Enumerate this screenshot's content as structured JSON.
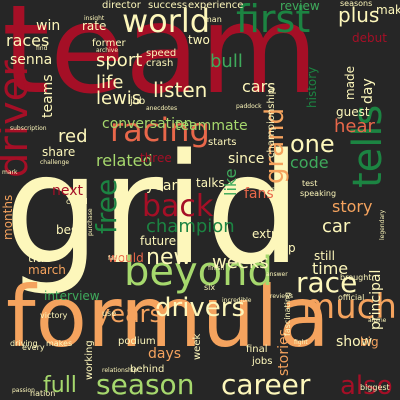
{
  "background": "#262626",
  "palette": {
    "red": "#a50f26",
    "coral": "#e8674a",
    "orange": "#f5a35e",
    "cream": "#fdf7bb",
    "lightgreen": "#a6d86d",
    "green": "#3faa5c",
    "darkgreen": "#1c8442"
  },
  "words": [
    {
      "text": "team",
      "color": "red"
    },
    {
      "text": "grid",
      "color": "cream"
    },
    {
      "text": "formula",
      "color": "orange"
    },
    {
      "text": "world",
      "color": "cream"
    },
    {
      "text": "first",
      "color": "darkgreen"
    },
    {
      "text": "racing",
      "color": "coral"
    },
    {
      "text": "driver",
      "color": "red"
    },
    {
      "text": "beyond",
      "color": "lightgreen"
    },
    {
      "text": "grand",
      "color": "orange"
    },
    {
      "text": "tells",
      "color": "darkgreen"
    },
    {
      "text": "much",
      "color": "orange"
    },
    {
      "text": "season",
      "color": "lightgreen"
    },
    {
      "text": "career",
      "color": "cream"
    },
    {
      "text": "drivers",
      "color": "cream"
    },
    {
      "text": "race",
      "color": "cream"
    },
    {
      "text": "back",
      "color": "red"
    },
    {
      "text": "new",
      "color": "cream"
    },
    {
      "text": "also",
      "color": "red"
    },
    {
      "text": "one",
      "color": "cream"
    },
    {
      "text": "free",
      "color": "darkgreen"
    },
    {
      "text": "years",
      "color": "orange"
    },
    {
      "text": "listen",
      "color": "cream"
    },
    {
      "text": "life",
      "color": "cream"
    },
    {
      "text": "lewis",
      "color": "cream"
    },
    {
      "text": "sport",
      "color": "cream"
    },
    {
      "text": "champion",
      "color": "darkgreen"
    },
    {
      "text": "weeks",
      "color": "cream"
    },
    {
      "text": "full",
      "color": "lightgreen"
    },
    {
      "text": "teams",
      "color": "cream"
    },
    {
      "text": "races",
      "color": "cream"
    },
    {
      "text": "win",
      "color": "cream"
    },
    {
      "text": "senna",
      "color": "cream"
    },
    {
      "text": "red",
      "color": "cream"
    },
    {
      "text": "related",
      "color": "lightgreen"
    },
    {
      "text": "conversation",
      "color": "lightgreen"
    },
    {
      "text": "teammate",
      "color": "lightgreen"
    },
    {
      "text": "code",
      "color": "green"
    },
    {
      "text": "hear",
      "color": "coral"
    },
    {
      "text": "plus",
      "color": "cream"
    },
    {
      "text": "cars",
      "color": "cream"
    },
    {
      "text": "bull",
      "color": "green"
    },
    {
      "text": "guest",
      "color": "cream"
    },
    {
      "text": "time",
      "color": "cream"
    },
    {
      "text": "story",
      "color": "orange"
    },
    {
      "text": "car",
      "color": "cream"
    },
    {
      "text": "since",
      "color": "cream"
    },
    {
      "text": "still",
      "color": "cream"
    },
    {
      "text": "interview",
      "color": "green"
    },
    {
      "text": "future",
      "color": "cream"
    },
    {
      "text": "year",
      "color": "cream"
    },
    {
      "text": "talks",
      "color": "cream"
    },
    {
      "text": "fans",
      "color": "coral"
    },
    {
      "text": "three",
      "color": "red"
    },
    {
      "text": "like",
      "color": "green"
    },
    {
      "text": "next",
      "color": "red"
    },
    {
      "text": "best",
      "color": "cream"
    },
    {
      "text": "share",
      "color": "cream"
    },
    {
      "text": "top",
      "color": "cream"
    },
    {
      "text": "extra",
      "color": "cream"
    },
    {
      "text": "two",
      "color": "cream"
    },
    {
      "text": "show",
      "color": "cream"
    },
    {
      "text": "days",
      "color": "orange"
    },
    {
      "text": "stories",
      "color": "orange"
    },
    {
      "text": "big",
      "color": "orange"
    },
    {
      "text": "would",
      "color": "coral"
    },
    {
      "text": "months",
      "color": "orange"
    },
    {
      "text": "title",
      "color": "cream"
    },
    {
      "text": "march",
      "color": "orange"
    },
    {
      "text": "championship",
      "color": "cream"
    },
    {
      "text": "history",
      "color": "darkgreen"
    },
    {
      "text": "made",
      "color": "cream"
    },
    {
      "text": "day",
      "color": "cream"
    },
    {
      "text": "make",
      "color": "cream"
    },
    {
      "text": "principal",
      "color": "cream"
    },
    {
      "text": "review",
      "color": "green"
    },
    {
      "text": "debut",
      "color": "red"
    },
    {
      "text": "rate",
      "color": "cream"
    },
    {
      "text": "podium",
      "color": "cream"
    },
    {
      "text": "behind",
      "color": "cream"
    },
    {
      "text": "final",
      "color": "cream"
    },
    {
      "text": "jobs",
      "color": "cream"
    },
    {
      "text": "week",
      "color": "cream"
    },
    {
      "text": "working",
      "color": "cream"
    },
    {
      "text": "success",
      "color": "cream"
    },
    {
      "text": "director",
      "color": "cream"
    },
    {
      "text": "experience",
      "color": "cream"
    },
    {
      "text": "seasons",
      "color": "cream"
    },
    {
      "text": "former",
      "color": "cream"
    },
    {
      "text": "speed",
      "color": "cream"
    },
    {
      "text": "crash",
      "color": "cream"
    },
    {
      "text": "job",
      "color": "cream"
    },
    {
      "text": "starts",
      "color": "cream"
    },
    {
      "text": "test",
      "color": "cream"
    },
    {
      "text": "speaking",
      "color": "cream"
    },
    {
      "text": "inside",
      "color": "cream"
    },
    {
      "text": "victory",
      "color": "cream"
    },
    {
      "text": "driving",
      "color": "cream"
    },
    {
      "text": "every",
      "color": "cream"
    },
    {
      "text": "official",
      "color": "cream"
    },
    {
      "text": "fascinating",
      "color": "cream"
    },
    {
      "text": "brought",
      "color": "cream"
    },
    {
      "text": "biggest",
      "color": "cream"
    },
    {
      "text": "nation",
      "color": "cream"
    },
    {
      "text": "man",
      "color": "cream"
    },
    {
      "text": "use",
      "color": "cream"
    },
    {
      "text": "six",
      "color": "cream"
    },
    {
      "text": "makes",
      "color": "cream"
    },
    {
      "text": "could",
      "color": "cream"
    },
    {
      "text": "mark",
      "color": "cream"
    },
    {
      "text": "challenge",
      "color": "cream"
    },
    {
      "text": "father",
      "color": "cream"
    },
    {
      "text": "finish",
      "color": "cream"
    },
    {
      "text": "find",
      "color": "cream"
    },
    {
      "text": "insight",
      "color": "cream"
    },
    {
      "text": "archive",
      "color": "cream"
    },
    {
      "text": "paddock",
      "color": "cream"
    },
    {
      "text": "anecdotes",
      "color": "cream"
    },
    {
      "text": "relationship",
      "color": "cream"
    },
    {
      "text": "reviews",
      "color": "cream"
    },
    {
      "text": "legendary",
      "color": "cream"
    },
    {
      "text": "purchase",
      "color": "cream"
    },
    {
      "text": "answer",
      "color": "cream"
    },
    {
      "text": "incredible",
      "color": "cream"
    },
    {
      "text": "subscription",
      "color": "cream"
    },
    {
      "text": "fight",
      "color": "cream"
    },
    {
      "text": "alpine",
      "color": "cream"
    },
    {
      "text": "passion",
      "color": "cream"
    }
  ]
}
